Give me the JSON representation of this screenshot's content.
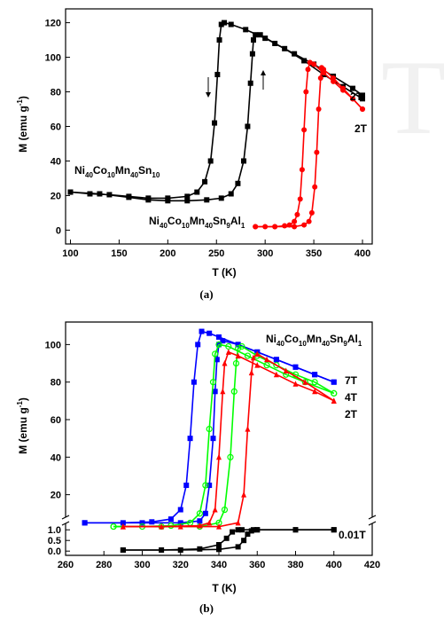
{
  "chart_data": [
    {
      "type": "line",
      "panel_label": "(a)",
      "xlabel": "T (K)",
      "ylabel": "M (emu g-1)",
      "xlim": [
        95,
        410
      ],
      "ylim": [
        -8,
        128
      ],
      "xticks": [
        100,
        150,
        200,
        250,
        300,
        350,
        400
      ],
      "yticks": [
        0,
        20,
        40,
        60,
        80,
        100,
        120
      ],
      "annotations": {
        "sample1": {
          "base": "Ni",
          "s1": "40",
          "b2": "Co",
          "s2": "10",
          "b3": "Mn",
          "s3": "40",
          "b4": "Sn",
          "s4": "10"
        },
        "sample2": {
          "base": "Ni",
          "s1": "40",
          "b2": "Co",
          "s2": "10",
          "b3": "Mn",
          "s3": "40",
          "b4": "Sn",
          "s4": "9",
          "b5": "Al",
          "s5": "1"
        },
        "field_top": "2T",
        "field_bottom": "2T"
      },
      "series": [
        {
          "color": "#000000",
          "marker": "square",
          "x": [
            100,
            120,
            140,
            160,
            180,
            200,
            220,
            230,
            238,
            244,
            248,
            251,
            253,
            255,
            258,
            265,
            280,
            300,
            320,
            340,
            360,
            380,
            400
          ],
          "y": [
            22,
            21,
            20.5,
            19.5,
            18.5,
            18.5,
            19.5,
            22,
            28,
            40,
            62,
            90,
            110,
            119,
            120,
            119,
            116,
            111,
            105,
            98,
            90,
            83,
            76
          ]
        },
        {
          "color": "#000000",
          "marker": "square",
          "x": [
            100,
            130,
            160,
            180,
            200,
            220,
            240,
            255,
            265,
            272,
            278,
            282,
            285,
            287,
            288,
            290,
            295,
            310,
            330,
            350,
            370,
            390,
            400
          ],
          "y": [
            22,
            21,
            19,
            17.5,
            17,
            17,
            17.5,
            18.5,
            21,
            27,
            40,
            60,
            85,
            102,
            110,
            113,
            113,
            108,
            102,
            96,
            89,
            82,
            78
          ]
        },
        {
          "color": "#ff0000",
          "marker": "circle",
          "x": [
            290,
            300,
            310,
            320,
            325,
            330,
            333,
            336,
            338,
            340,
            342,
            344,
            346,
            350,
            360,
            370,
            380,
            390,
            400
          ],
          "y": [
            2,
            2,
            2,
            2.5,
            3,
            5,
            9,
            18,
            35,
            58,
            80,
            93,
            97,
            96,
            91,
            86,
            81,
            76,
            70
          ]
        },
        {
          "color": "#ff0000",
          "marker": "circle",
          "x": [
            290,
            310,
            330,
            340,
            345,
            348,
            351,
            353,
            355,
            357,
            358,
            360,
            370,
            380,
            390,
            400
          ],
          "y": [
            2,
            2,
            2,
            3,
            5,
            10,
            25,
            45,
            70,
            88,
            94,
            93,
            88,
            82,
            76,
            70
          ]
        }
      ]
    },
    {
      "type": "line",
      "panel_label": "(b)",
      "xlabel": "T (K)",
      "ylabel": "M (emu g-1)",
      "xlim": [
        260,
        420
      ],
      "xticks": [
        260,
        280,
        300,
        320,
        340,
        360,
        380,
        400,
        420
      ],
      "yticks_upper": [
        20,
        40,
        60,
        80,
        100
      ],
      "yticks_lower": [
        "0.0",
        "0.5",
        "1.0"
      ],
      "upper_ylim": [
        8,
        112
      ],
      "lower_ylim": [
        -0.2,
        1.3
      ],
      "annotations": {
        "sample": {
          "base": "Ni",
          "s1": "40",
          "b2": "Co",
          "s2": "10",
          "b3": "Mn",
          "s3": "40",
          "b4": "Sn",
          "s4": "9",
          "b5": "Al",
          "s5": "1"
        },
        "field_7T": "7T",
        "field_4T": "4T",
        "field_2T": "2T",
        "field_001T": "0.01T"
      },
      "series": [
        {
          "color": "#0000ff",
          "marker": "square",
          "x": [
            270,
            290,
            305,
            315,
            320,
            323,
            325,
            327,
            329,
            331,
            335,
            340,
            350,
            360,
            370,
            380,
            390,
            400
          ],
          "y": [
            5,
            5,
            5.5,
            7,
            12,
            25,
            50,
            80,
            100,
            107,
            106,
            104,
            100,
            96,
            92,
            88,
            84,
            80
          ]
        },
        {
          "color": "#0000ff",
          "marker": "square",
          "x": [
            270,
            300,
            320,
            330,
            333,
            335,
            337,
            338,
            339,
            340,
            342,
            350,
            360,
            370,
            380,
            390,
            400
          ],
          "y": [
            5,
            5,
            5,
            6,
            10,
            25,
            50,
            75,
            92,
            100,
            102,
            100,
            96,
            92,
            88,
            84,
            80
          ]
        },
        {
          "color": "#00ff00",
          "marker": "circle-open",
          "x": [
            285,
            300,
            315,
            325,
            330,
            333,
            335,
            337,
            338,
            340,
            345,
            355,
            365,
            375,
            385,
            400
          ],
          "y": [
            3,
            3,
            3.5,
            5,
            10,
            25,
            55,
            80,
            95,
            100,
            99,
            94,
            89,
            84,
            80,
            74
          ]
        },
        {
          "color": "#00ff00",
          "marker": "circle-open",
          "x": [
            285,
            310,
            330,
            340,
            343,
            346,
            348,
            349,
            350,
            352,
            360,
            370,
            380,
            390,
            400
          ],
          "y": [
            3,
            3,
            3,
            5,
            12,
            40,
            75,
            90,
            98,
            99,
            94,
            89,
            84,
            80,
            74
          ]
        },
        {
          "color": "#ff0000",
          "marker": "triangle",
          "x": [
            290,
            310,
            330,
            335,
            338,
            340,
            342,
            343,
            345,
            350,
            360,
            370,
            380,
            390,
            400
          ],
          "y": [
            3,
            3,
            3.5,
            5,
            12,
            40,
            75,
            90,
            96,
            94,
            89,
            84,
            79,
            75,
            70
          ]
        },
        {
          "color": "#ff0000",
          "marker": "triangle",
          "x": [
            290,
            320,
            340,
            350,
            353,
            355,
            357,
            358,
            360,
            365,
            375,
            385,
            400
          ],
          "y": [
            3,
            3,
            3,
            5,
            20,
            55,
            85,
            93,
            95,
            92,
            86,
            80,
            70
          ]
        },
        {
          "color": "#000000",
          "marker": "square",
          "x": [
            290,
            310,
            330,
            340,
            344,
            347,
            350,
            352,
            360,
            380,
            400
          ],
          "y": [
            0.05,
            0.05,
            0.1,
            0.3,
            0.6,
            0.9,
            1.0,
            1.0,
            1.0,
            1.0,
            1.0
          ]
        },
        {
          "color": "#000000",
          "marker": "square",
          "x": [
            290,
            320,
            340,
            350,
            353,
            355,
            357,
            358,
            360,
            380,
            400
          ],
          "y": [
            0.05,
            0.05,
            0.08,
            0.2,
            0.5,
            0.8,
            0.95,
            1.0,
            1.0,
            1.0,
            1.0
          ]
        }
      ]
    }
  ]
}
